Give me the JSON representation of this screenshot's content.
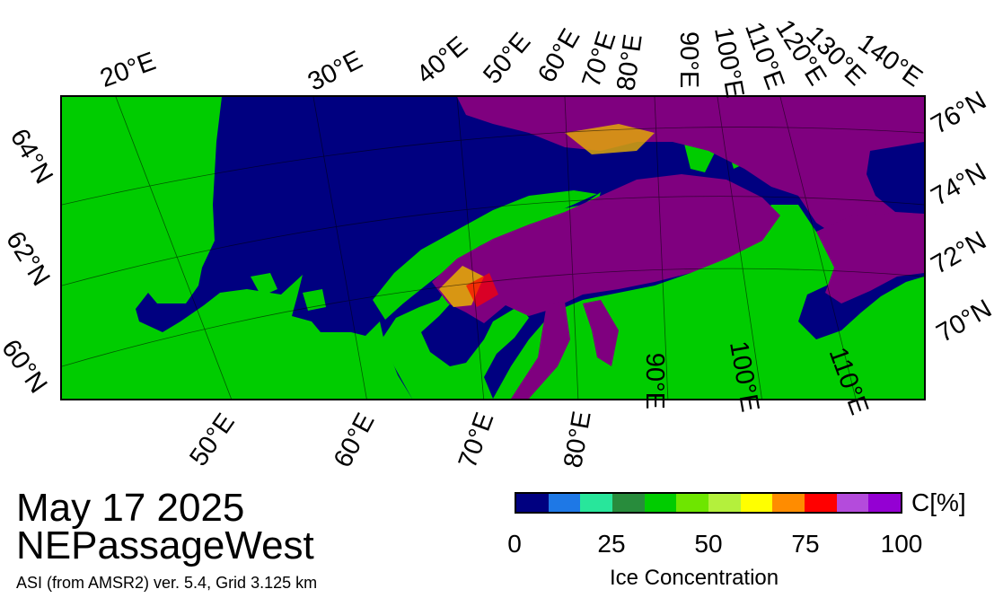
{
  "map": {
    "title_date": "May 17 2025",
    "region": "NEPassageWest",
    "source": "ASI (from AMSR2) ver. 5.4,  Grid 3.125 km",
    "top_lon_labels": [
      "20°E",
      "30°E",
      "40°E",
      "50°E",
      "60°E",
      "70°E",
      "80°E",
      "90°E",
      "100°E",
      "110°E",
      "120°E",
      "130°E",
      "140°E"
    ],
    "bottom_lon_labels": [
      "50°E",
      "60°E",
      "70°E",
      "80°E",
      "90°E",
      "100°E",
      "110°E"
    ],
    "left_lat_labels": [
      "64°N",
      "62°N",
      "60°N"
    ],
    "right_lat_labels": [
      "76°N",
      "74°N",
      "72°N",
      "70°N"
    ],
    "colors": {
      "ocean_open": "#000080",
      "land": "#00cc00",
      "land_missing": "#999999",
      "ice_low": "#e8b000",
      "ice_high": "#7f007f"
    }
  },
  "colorbar": {
    "title": "Ice Concentration",
    "unit": "C[%]",
    "ticks": [
      "0",
      "25",
      "50",
      "75",
      "100"
    ],
    "colors": [
      "#000080",
      "#1e78e6",
      "#28e69b",
      "#288c3c",
      "#00cc00",
      "#6ee600",
      "#b4f03c",
      "#ffff00",
      "#ff8c00",
      "#ff0000",
      "#b44bdc",
      "#9400d3"
    ]
  }
}
